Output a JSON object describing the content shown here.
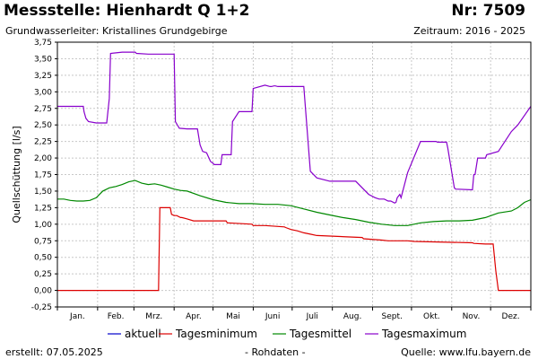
{
  "header": {
    "title": "Messstelle: Hienhardt Q 1+2",
    "nr": "Nr: 7509",
    "subtitle": "Grundwasserleiter: Kristallines Grundgebirge",
    "period": "Zeitraum: 2016 - 2025"
  },
  "footer": {
    "created": "erstellt:  07.05.2025",
    "note": "- Rohdaten -",
    "source": "Quelle: www.lfu.bayern.de"
  },
  "colors": {
    "aktuell": "#0000cc",
    "min": "#dd0000",
    "mittel": "#008800",
    "max": "#8800cc",
    "grid": "#c8c8c8"
  },
  "chart_data": {
    "type": "line",
    "ylabel": "Quellschüttung [l/s]",
    "ylim": [
      -0.25,
      3.75
    ],
    "yticks": [
      "3,75",
      "3,50",
      "3,25",
      "3,00",
      "2,75",
      "2,50",
      "2,25",
      "2,00",
      "1,75",
      "1,50",
      "1,25",
      "1,00",
      "0,75",
      "0,50",
      "0,25",
      "0,00",
      "-0,25"
    ],
    "ytick_values": [
      3.75,
      3.5,
      3.25,
      3.0,
      2.75,
      2.5,
      2.25,
      2.0,
      1.75,
      1.5,
      1.25,
      1.0,
      0.75,
      0.5,
      0.25,
      0.0,
      -0.25
    ],
    "xlim": [
      0,
      365
    ],
    "month_labels": [
      "Jan.",
      "Feb.",
      "Mrz.",
      "Apr.",
      "Mai",
      "Juni",
      "Juli",
      "Aug.",
      "Sept.",
      "Okt.",
      "Nov.",
      "Dez."
    ],
    "grid": true,
    "legend_placement": "bottom",
    "series": [
      {
        "name": "aktuell",
        "x": [],
        "y": []
      },
      {
        "name": "Tagesminimum",
        "x": [
          0,
          60,
          78,
          79,
          87,
          88,
          90,
          92,
          95,
          96,
          100,
          105,
          130,
          131,
          150,
          151,
          160,
          175,
          176,
          180,
          185,
          190,
          195,
          200,
          235,
          236,
          250,
          255,
          270,
          275,
          320,
          321,
          330,
          336,
          338,
          340,
          365
        ],
        "y": [
          0,
          0,
          0,
          1.25,
          1.25,
          1.15,
          1.13,
          1.13,
          1.1,
          1.1,
          1.08,
          1.05,
          1.05,
          1.02,
          1.0,
          0.98,
          0.98,
          0.96,
          0.95,
          0.92,
          0.9,
          0.87,
          0.85,
          0.83,
          0.8,
          0.78,
          0.76,
          0.75,
          0.75,
          0.74,
          0.72,
          0.71,
          0.7,
          0.7,
          0.3,
          0,
          0
        ]
      },
      {
        "name": "Tagesmittel",
        "x": [
          0,
          5,
          10,
          15,
          20,
          25,
          30,
          35,
          40,
          45,
          50,
          55,
          60,
          65,
          70,
          75,
          80,
          85,
          90,
          95,
          100,
          110,
          120,
          130,
          140,
          150,
          160,
          170,
          180,
          190,
          200,
          210,
          220,
          230,
          240,
          250,
          260,
          270,
          280,
          290,
          300,
          310,
          320,
          330,
          340,
          350,
          355,
          360,
          365
        ],
        "y": [
          1.38,
          1.38,
          1.36,
          1.35,
          1.35,
          1.36,
          1.4,
          1.5,
          1.55,
          1.57,
          1.6,
          1.64,
          1.66,
          1.62,
          1.6,
          1.61,
          1.59,
          1.56,
          1.53,
          1.51,
          1.5,
          1.43,
          1.37,
          1.33,
          1.31,
          1.31,
          1.3,
          1.3,
          1.28,
          1.23,
          1.18,
          1.14,
          1.1,
          1.07,
          1.03,
          1.0,
          0.98,
          0.98,
          1.02,
          1.04,
          1.05,
          1.05,
          1.06,
          1.1,
          1.17,
          1.2,
          1.25,
          1.33,
          1.37
        ]
      },
      {
        "name": "Tagesmaximum",
        "x": [
          0,
          20,
          20.5,
          22,
          24,
          30,
          37,
          38,
          40,
          41,
          50,
          60,
          61,
          70,
          75,
          90,
          91,
          94,
          100,
          108,
          110,
          112,
          115,
          118,
          120,
          121,
          126,
          127,
          134,
          135,
          140,
          150,
          151,
          160,
          164,
          165,
          167,
          168,
          170,
          172,
          175,
          180,
          190,
          195,
          200,
          210,
          220,
          230,
          240,
          245,
          248,
          252,
          255,
          257,
          260,
          261,
          262,
          264,
          265,
          270,
          280,
          290,
          292,
          293,
          294,
          298,
          300,
          301,
          306,
          307,
          320,
          321,
          322,
          324,
          330,
          331,
          340,
          350,
          355,
          365
        ],
        "y": [
          2.78,
          2.78,
          2.7,
          2.6,
          2.55,
          2.53,
          2.53,
          2.53,
          2.9,
          3.58,
          3.6,
          3.6,
          3.58,
          3.57,
          3.57,
          3.57,
          2.55,
          2.45,
          2.44,
          2.44,
          2.2,
          2.1,
          2.08,
          1.95,
          1.92,
          1.9,
          1.9,
          2.05,
          2.05,
          2.55,
          2.7,
          2.7,
          3.05,
          3.1,
          3.08,
          3.08,
          3.09,
          3.09,
          3.08,
          3.08,
          3.08,
          3.08,
          3.08,
          1.8,
          1.7,
          1.65,
          1.65,
          1.65,
          1.45,
          1.4,
          1.38,
          1.38,
          1.35,
          1.35,
          1.32,
          1.33,
          1.4,
          1.45,
          1.4,
          1.78,
          2.25,
          2.25,
          2.25,
          2.24,
          2.24,
          2.24,
          2.24,
          2.15,
          1.55,
          1.53,
          1.52,
          1.75,
          1.75,
          2.0,
          2.0,
          2.05,
          2.1,
          2.4,
          2.5,
          2.78
        ]
      }
    ]
  }
}
